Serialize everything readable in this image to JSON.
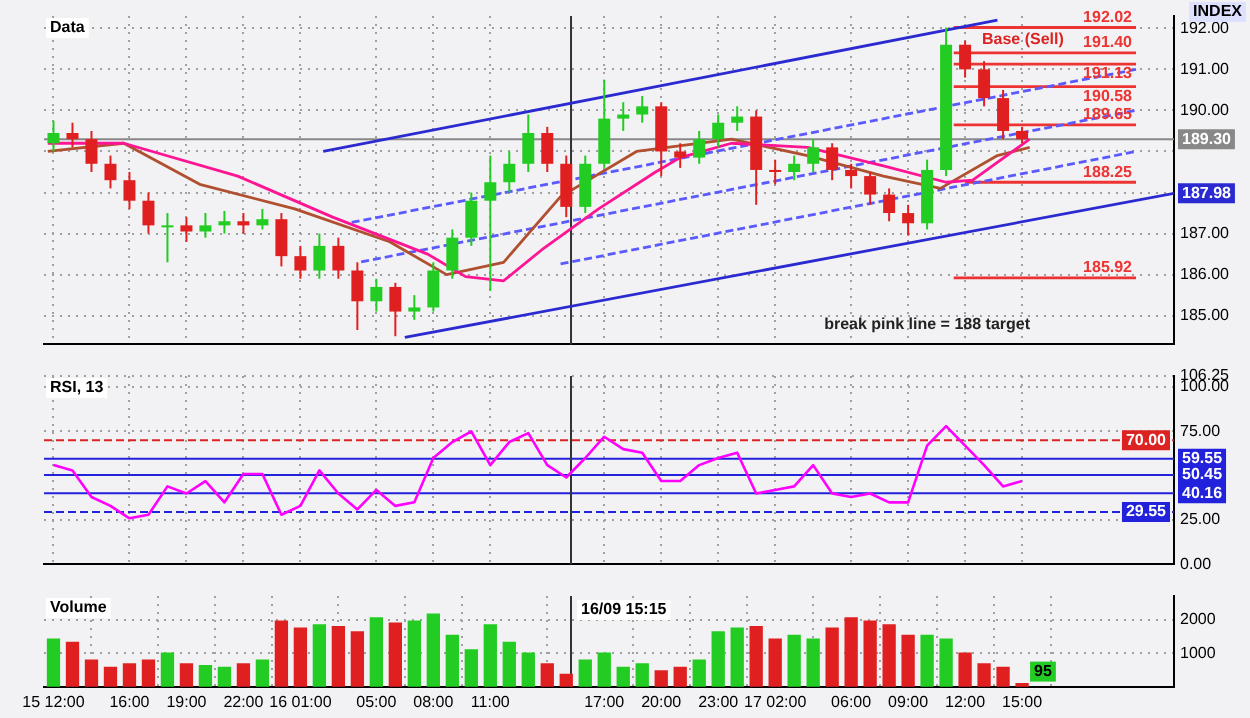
{
  "chart_data": [
    {
      "type": "candlestick",
      "title": "Data",
      "tick_labels": "y",
      "grid": true,
      "x": [
        "--09-15T12:00",
        "--09-15T13:00",
        "--09-15T14:00",
        "--09-15T15:00",
        "--09-15T16:00",
        "--09-15T17:00",
        "--09-15T18:00",
        "--09-15T19:00",
        "--09-15T20:00",
        "--09-15T21:00",
        "--09-15T22:00",
        "--09-15T23:00",
        "--09-16T00:00",
        "--09-16T01:00",
        "--09-16T02:00",
        "--09-16T03:00",
        "--09-16T04:00",
        "--09-16T05:00",
        "--09-16T06:00",
        "--09-16T07:00",
        "--09-16T08:00",
        "--09-16T09:00",
        "--09-16T10:00",
        "--09-16T11:00",
        "--09-16T12:00",
        "--09-16T13:00",
        "--09-16T14:00",
        "--09-16T15:00",
        "--09-16T16:00",
        "--09-16T17:00",
        "--09-16T18:00",
        "--09-16T19:00",
        "--09-16T20:00",
        "--09-16T21:00",
        "--09-16T22:00",
        "--09-16T23:00",
        "--09-17T00:00",
        "--09-17T01:00",
        "--09-17T02:00",
        "--09-17T03:00",
        "--09-17T04:00",
        "--09-17T05:00",
        "--09-17T06:00",
        "--09-17T07:00",
        "--09-17T08:00",
        "--09-17T09:00",
        "--09-17T10:00",
        "--09-17T11:00",
        "--09-17T12:00",
        "--09-17T13:00",
        "--09-17T14:00",
        "--09-17T15:00"
      ],
      "ohlc": [
        [
          189.2,
          189.75,
          189.0,
          189.45
        ],
        [
          189.45,
          189.7,
          189.1,
          189.3
        ],
        [
          189.3,
          189.5,
          188.5,
          188.7
        ],
        [
          188.7,
          188.9,
          188.1,
          188.3
        ],
        [
          188.3,
          188.5,
          187.6,
          187.8
        ],
        [
          187.8,
          188.0,
          187.0,
          187.2
        ],
        [
          187.2,
          187.5,
          186.3,
          187.2
        ],
        [
          187.2,
          187.4,
          186.8,
          187.05
        ],
        [
          187.05,
          187.5,
          186.9,
          187.2
        ],
        [
          187.2,
          187.55,
          187.0,
          187.3
        ],
        [
          187.3,
          187.5,
          187.0,
          187.2
        ],
        [
          187.2,
          187.6,
          187.1,
          187.35
        ],
        [
          187.35,
          187.5,
          186.2,
          186.45
        ],
        [
          186.45,
          186.7,
          185.9,
          186.1
        ],
        [
          186.1,
          187.0,
          185.9,
          186.7
        ],
        [
          186.7,
          186.9,
          185.9,
          186.1
        ],
        [
          186.1,
          186.3,
          184.65,
          185.35
        ],
        [
          185.35,
          185.9,
          185.1,
          185.7
        ],
        [
          185.7,
          185.8,
          184.5,
          185.1
        ],
        [
          185.1,
          185.5,
          184.9,
          185.2
        ],
        [
          185.2,
          186.3,
          185.1,
          186.1
        ],
        [
          186.1,
          187.1,
          185.9,
          186.9
        ],
        [
          186.9,
          188.0,
          186.7,
          187.8
        ],
        [
          187.8,
          188.9,
          185.6,
          188.25
        ],
        [
          188.25,
          189.0,
          188.0,
          188.7
        ],
        [
          188.7,
          189.9,
          188.5,
          189.45
        ],
        [
          189.45,
          189.6,
          188.5,
          188.7
        ],
        [
          188.7,
          188.9,
          187.4,
          187.65
        ],
        [
          187.65,
          188.9,
          187.5,
          188.7
        ],
        [
          188.7,
          190.75,
          188.6,
          189.8
        ],
        [
          189.8,
          190.2,
          189.5,
          189.9
        ],
        [
          189.9,
          190.35,
          189.7,
          190.1
        ],
        [
          190.1,
          190.2,
          188.4,
          189.0
        ],
        [
          189.0,
          189.2,
          188.6,
          188.85
        ],
        [
          188.85,
          189.5,
          188.7,
          189.3
        ],
        [
          189.3,
          189.9,
          189.1,
          189.7
        ],
        [
          189.7,
          190.1,
          189.5,
          189.85
        ],
        [
          189.85,
          190.0,
          187.7,
          188.55
        ],
        [
          188.55,
          188.8,
          188.2,
          188.5
        ],
        [
          188.5,
          188.9,
          188.3,
          188.7
        ],
        [
          188.7,
          189.3,
          188.5,
          189.1
        ],
        [
          189.1,
          189.2,
          188.3,
          188.55
        ],
        [
          188.55,
          188.7,
          188.1,
          188.4
        ],
        [
          188.4,
          188.5,
          187.7,
          187.95
        ],
        [
          187.95,
          188.1,
          187.3,
          187.5
        ],
        [
          187.5,
          187.7,
          186.95,
          187.25
        ],
        [
          187.25,
          188.8,
          187.1,
          188.55
        ],
        [
          188.55,
          192.02,
          188.4,
          191.6
        ],
        [
          191.6,
          191.7,
          190.8,
          191.0
        ],
        [
          191.0,
          191.2,
          190.1,
          190.3
        ],
        [
          190.3,
          190.5,
          189.3,
          189.5
        ],
        [
          189.5,
          189.6,
          189.2,
          189.3
        ]
      ],
      "colors": [
        "#22cc22",
        "#e02020",
        "#e02020",
        "#e02020",
        "#e02020",
        "#e02020",
        "#22cc22",
        "#e02020",
        "#22cc22",
        "#22cc22",
        "#e02020",
        "#22cc22",
        "#e02020",
        "#e02020",
        "#22cc22",
        "#e02020",
        "#e02020",
        "#22cc22",
        "#e02020",
        "#22cc22",
        "#22cc22",
        "#22cc22",
        "#22cc22",
        "#22cc22",
        "#22cc22",
        "#22cc22",
        "#e02020",
        "#e02020",
        "#22cc22",
        "#22cc22",
        "#22cc22",
        "#22cc22",
        "#e02020",
        "#e02020",
        "#22cc22",
        "#22cc22",
        "#22cc22",
        "#e02020",
        "#e02020",
        "#22cc22",
        "#22cc22",
        "#e02020",
        "#e02020",
        "#e02020",
        "#e02020",
        "#e02020",
        "#22cc22",
        "#22cc22",
        "#e02020",
        "#e02020",
        "#e02020",
        "#e02020"
      ],
      "series": [
        {
          "type": "line",
          "color": "#ff1493",
          "x": [
            "--09-15T11:42",
            "--09-15T15:42",
            "--09-15T21:42",
            "--09-16T02:42",
            "--09-16T07:42",
            "--09-16T09:42",
            "--09-16T11:42",
            "--09-16T13:42",
            "--09-16T16:42",
            "--09-16T19:42",
            "--09-16T21:00",
            "--09-16T23:42",
            "--09-17T03:42",
            "--09-17T07:42",
            "--09-17T11:00",
            "--09-17T12:24",
            "--09-17T15:24"
          ],
          "values": [
            189.2,
            189.2,
            188.4,
            187.4,
            186.5,
            185.95,
            185.85,
            186.6,
            187.6,
            188.5,
            188.85,
            189.2,
            189.1,
            188.65,
            188.25,
            188.3,
            189.3
          ]
        },
        {
          "type": "line",
          "color": "#b05030",
          "x": [
            "--09-15T11:42",
            "--09-15T15:42",
            "--09-15T19:42",
            "--09-16T00:42",
            "--09-16T05:42",
            "--09-16T08:42",
            "--09-16T11:42",
            "--09-16T14:42",
            "--09-16T18:42",
            "--09-16T23:42",
            "--09-17T03:42",
            "--09-17T07:42",
            "--09-17T10:42",
            "--09-17T13:42",
            "--09-17T15:24"
          ],
          "values": [
            189.0,
            189.2,
            188.2,
            187.6,
            186.8,
            186.0,
            186.3,
            187.9,
            189.0,
            189.3,
            188.9,
            188.4,
            188.1,
            188.9,
            189.1
          ]
        },
        {
          "type": "line",
          "color": "#2a2ad0",
          "x": [
            "--09-16T02:12",
            "--09-17T13:42"
          ],
          "values": [
            189.0,
            192.2
          ]
        },
        {
          "type": "line",
          "color": "#2a2ad0",
          "x": [
            "--09-16T06:30",
            "--09-17T23:00"
          ],
          "values": [
            184.47,
            187.98
          ],
          "value_labels": [
            null,
            "187.98"
          ]
        },
        {
          "type": "line",
          "color": "#5a5aff",
          "line_style": "dashed",
          "x": [
            "--09-16T03:42",
            "--09-17T21:00"
          ],
          "values": [
            187.27,
            191.0
          ]
        },
        {
          "type": "line",
          "color": "#5a5aff",
          "line_style": "dashed",
          "x": [
            "--09-16T04:12",
            "--09-17T21:00"
          ],
          "values": [
            186.31,
            190.0
          ]
        },
        {
          "type": "line",
          "color": "#5a5aff",
          "line_style": "dashed",
          "x": [
            "--09-16T14:42",
            "--09-17T21:00"
          ],
          "values": [
            186.26,
            189.0
          ]
        },
        {
          "type": "line",
          "name": "192.02",
          "color": "#ee3333",
          "x": [
            "--09-17T11:24",
            "--09-17T21:00"
          ],
          "values": [
            192.02,
            192.02
          ]
        },
        {
          "type": "line",
          "name": "191.40",
          "color": "#ee3333",
          "x": [
            "--09-17T11:24",
            "--09-17T21:00"
          ],
          "values": [
            191.4,
            191.4
          ]
        },
        {
          "type": "line",
          "name": "191.13",
          "color": "#ee3333",
          "x": [
            "--09-17T11:24",
            "--09-17T21:00"
          ],
          "values": [
            191.13,
            191.13
          ]
        },
        {
          "type": "line",
          "name": "190.58",
          "color": "#ee3333",
          "x": [
            "--09-17T11:24",
            "--09-17T21:00"
          ],
          "values": [
            190.58,
            190.58
          ]
        },
        {
          "type": "line",
          "name": "189.65",
          "color": "#ee3333",
          "x": [
            "--09-17T11:24",
            "--09-17T21:00"
          ],
          "values": [
            189.65,
            189.65
          ]
        },
        {
          "type": "line",
          "name": "188.25",
          "color": "#ee3333",
          "x": [
            "--09-17T12:00",
            "--09-17T21:00"
          ],
          "values": [
            188.25,
            188.25
          ]
        },
        {
          "type": "line",
          "name": "185.92",
          "color": "#ee3333",
          "x": [
            "--09-17T11:24",
            "--09-17T21:00"
          ],
          "values": [
            185.92,
            185.92
          ]
        }
      ],
      "xlim": [
        "--09-15T11:30",
        "--09-17T23:00"
      ],
      "xticks": [
        {
          "value": "--09-15T12:00",
          "label": "15 12:00"
        },
        {
          "value": "--09-15T16:00",
          "label": "16:00"
        },
        {
          "value": "--09-15T19:00",
          "label": "19:00"
        },
        {
          "value": "--09-15T22:00",
          "label": "22:00"
        },
        {
          "value": "--09-16T01:00",
          "label": "16 01:00"
        },
        {
          "value": "--09-16T05:00",
          "label": "05:00"
        },
        {
          "value": "--09-16T08:00",
          "label": "08:00"
        },
        {
          "value": "--09-16T11:00",
          "label": "11:00"
        },
        {
          "value": "--09-16T17:00",
          "label": "17:00"
        },
        {
          "value": "--09-16T20:00",
          "label": "20:00"
        },
        {
          "value": "--09-16T23:00",
          "label": "23:00"
        },
        {
          "value": "--09-17T02:00",
          "label": "17 02:00"
        },
        {
          "value": "--09-17T06:00",
          "label": "06:00"
        },
        {
          "value": "--09-17T09:00",
          "label": "09:00"
        },
        {
          "value": "--09-17T12:00",
          "label": "12:00"
        },
        {
          "value": "--09-17T15:00",
          "label": "15:00"
        }
      ],
      "ylim": [
        184.3,
        192.3
      ],
      "yticks": [
        {
          "value": 185,
          "label": "185.00"
        },
        {
          "value": 186,
          "label": "186.00"
        },
        {
          "value": 187,
          "label": "187.00"
        },
        {
          "value": 188,
          "label": null
        },
        {
          "value": 189,
          "label": null
        },
        {
          "value": 190,
          "label": "190.00"
        },
        {
          "value": 191,
          "label": "191.00"
        },
        {
          "value": 192,
          "label": "192.00"
        }
      ],
      "ref_lines": [
        {
          "axis": "y",
          "value": 189.3,
          "label": "189.30",
          "color": "#888888"
        },
        {
          "axis": "x",
          "value": "--09-16T15:15",
          "color": "#333333"
        }
      ],
      "annotations": [
        "INDEX",
        "Base (Sell)",
        "break pink line = 188 target"
      ]
    },
    {
      "type": "line",
      "title": "RSI, 13",
      "tick_labels": "y",
      "grid": true,
      "color": "#ff00ff",
      "x": [
        "--09-15T12:00",
        "--09-15T13:00",
        "--09-15T14:00",
        "--09-15T15:00",
        "--09-15T16:00",
        "--09-15T17:00",
        "--09-15T18:00",
        "--09-15T19:00",
        "--09-15T20:00",
        "--09-15T21:00",
        "--09-15T22:00",
        "--09-15T23:00",
        "--09-16T00:00",
        "--09-16T01:00",
        "--09-16T02:00",
        "--09-16T03:00",
        "--09-16T04:00",
        "--09-16T05:00",
        "--09-16T06:00",
        "--09-16T07:00",
        "--09-16T08:00",
        "--09-16T09:00",
        "--09-16T10:00",
        "--09-16T11:00",
        "--09-16T12:00",
        "--09-16T13:00",
        "--09-16T14:00",
        "--09-16T15:00",
        "--09-16T16:00",
        "--09-16T17:00",
        "--09-16T18:00",
        "--09-16T19:00",
        "--09-16T20:00",
        "--09-16T21:00",
        "--09-16T22:00",
        "--09-16T23:00",
        "--09-17T00:00",
        "--09-17T01:00",
        "--09-17T02:00",
        "--09-17T03:00",
        "--09-17T04:00",
        "--09-17T05:00",
        "--09-17T06:00",
        "--09-17T07:00",
        "--09-17T08:00",
        "--09-17T09:00",
        "--09-17T10:00",
        "--09-17T11:00",
        "--09-17T12:00",
        "--09-17T13:00",
        "--09-17T14:00",
        "--09-17T15:00"
      ],
      "values": [
        56,
        53,
        38,
        33,
        26,
        28,
        44,
        40,
        47,
        35,
        51,
        51,
        28,
        33,
        53,
        40,
        31,
        42,
        33,
        35,
        60,
        69,
        75,
        56,
        69,
        74,
        56,
        49,
        60,
        72,
        65,
        63,
        47,
        47,
        56,
        60,
        63,
        40,
        42,
        44,
        56,
        40,
        38,
        40,
        35,
        35,
        67,
        78,
        67,
        56,
        44,
        47
      ],
      "xlim": [
        "--09-15T11:30",
        "--09-17T23:00"
      ],
      "xticks": [
        {
          "value": "--09-15T12:00",
          "label": "15 12:00"
        },
        {
          "value": "--09-15T16:00",
          "label": "16:00"
        },
        {
          "value": "--09-15T19:00",
          "label": "19:00"
        },
        {
          "value": "--09-15T22:00",
          "label": "22:00"
        },
        {
          "value": "--09-16T01:00",
          "label": "16 01:00"
        },
        {
          "value": "--09-16T05:00",
          "label": "05:00"
        },
        {
          "value": "--09-16T08:00",
          "label": "08:00"
        },
        {
          "value": "--09-16T11:00",
          "label": "11:00"
        },
        {
          "value": "--09-16T17:00",
          "label": "17:00"
        },
        {
          "value": "--09-16T20:00",
          "label": "20:00"
        },
        {
          "value": "--09-16T23:00",
          "label": "23:00"
        },
        {
          "value": "--09-17T02:00",
          "label": "17 02:00"
        },
        {
          "value": "--09-17T06:00",
          "label": "06:00"
        },
        {
          "value": "--09-17T09:00",
          "label": "09:00"
        },
        {
          "value": "--09-17T12:00",
          "label": "12:00"
        },
        {
          "value": "--09-17T15:00",
          "label": "15:00"
        }
      ],
      "ylim": [
        0,
        106.25
      ],
      "yticks": [
        {
          "value": 0,
          "label": "0.00"
        },
        {
          "value": 25,
          "label": "25.00"
        },
        {
          "value": 75,
          "label": "75.00"
        },
        {
          "value": 100,
          "label": "100.00"
        },
        {
          "value": 106.25,
          "label": "106.25"
        }
      ],
      "ref_lines": [
        {
          "axis": "y",
          "value": 70,
          "label": "70.00",
          "color": "#dd2222",
          "line_style": "dashed"
        },
        {
          "axis": "y",
          "value": 59.55,
          "label": "59.55",
          "color": "#2222dd"
        },
        {
          "axis": "y",
          "value": 50.45,
          "label": "50.45",
          "color": "#2222dd"
        },
        {
          "axis": "y",
          "value": 40.16,
          "label": "40.16",
          "color": "#2222dd"
        },
        {
          "axis": "y",
          "value": 29.55,
          "label": "29.55",
          "color": "#2222dd",
          "line_style": "dashed"
        },
        {
          "axis": "x",
          "value": "--09-16T15:15",
          "color": "#333333"
        }
      ]
    },
    {
      "type": "bar",
      "title": "Volume",
      "grid": true,
      "x": [
        "--09-15T12:00",
        "--09-15T13:00",
        "--09-15T14:00",
        "--09-15T15:00",
        "--09-15T16:00",
        "--09-15T17:00",
        "--09-15T18:00",
        "--09-15T19:00",
        "--09-15T20:00",
        "--09-15T21:00",
        "--09-15T22:00",
        "--09-15T23:00",
        "--09-16T00:00",
        "--09-16T01:00",
        "--09-16T02:00",
        "--09-16T03:00",
        "--09-16T04:00",
        "--09-16T05:00",
        "--09-16T06:00",
        "--09-16T07:00",
        "--09-16T08:00",
        "--09-16T09:00",
        "--09-16T10:00",
        "--09-16T11:00",
        "--09-16T12:00",
        "--09-16T13:00",
        "--09-16T14:00",
        "--09-16T15:00",
        "--09-16T16:00",
        "--09-16T17:00",
        "--09-16T18:00",
        "--09-16T19:00",
        "--09-16T20:00",
        "--09-16T21:00",
        "--09-16T22:00",
        "--09-16T23:00",
        "--09-17T00:00",
        "--09-17T01:00",
        "--09-17T02:00",
        "--09-17T03:00",
        "--09-17T04:00",
        "--09-17T05:00",
        "--09-17T06:00",
        "--09-17T07:00",
        "--09-17T08:00",
        "--09-17T09:00",
        "--09-17T10:00",
        "--09-17T11:00",
        "--09-17T12:00",
        "--09-17T13:00",
        "--09-17T14:00",
        "--09-17T15:00"
      ],
      "values": [
        1420,
        1320,
        790,
        580,
        680,
        790,
        1000,
        680,
        630,
        580,
        680,
        790,
        1950,
        1740,
        1840,
        1790,
        1630,
        2050,
        1890,
        1950,
        2160,
        1530,
        1100,
        1840,
        1320,
        1000,
        680,
        370,
        790,
        1000,
        580,
        680,
        470,
        580,
        790,
        1630,
        1740,
        1790,
        1420,
        1530,
        1420,
        1740,
        2050,
        1950,
        1840,
        1530,
        1530,
        1420,
        1000,
        680,
        580,
        95
      ],
      "value_labels": [
        null,
        null,
        null,
        null,
        null,
        null,
        null,
        null,
        null,
        null,
        null,
        null,
        null,
        null,
        null,
        null,
        null,
        null,
        null,
        null,
        null,
        null,
        null,
        null,
        null,
        null,
        null,
        null,
        null,
        null,
        null,
        null,
        null,
        null,
        null,
        null,
        null,
        null,
        null,
        null,
        null,
        null,
        null,
        null,
        null,
        null,
        null,
        null,
        null,
        null,
        null,
        "95"
      ],
      "colors": [
        "#22cc22",
        "#e02020",
        "#e02020",
        "#e02020",
        "#e02020",
        "#e02020",
        "#22cc22",
        "#e02020",
        "#22cc22",
        "#22cc22",
        "#e02020",
        "#22cc22",
        "#e02020",
        "#e02020",
        "#22cc22",
        "#e02020",
        "#e02020",
        "#22cc22",
        "#e02020",
        "#22cc22",
        "#22cc22",
        "#22cc22",
        "#22cc22",
        "#22cc22",
        "#22cc22",
        "#22cc22",
        "#e02020",
        "#e02020",
        "#22cc22",
        "#22cc22",
        "#22cc22",
        "#22cc22",
        "#e02020",
        "#e02020",
        "#22cc22",
        "#22cc22",
        "#22cc22",
        "#e02020",
        "#e02020",
        "#22cc22",
        "#22cc22",
        "#e02020",
        "#e02020",
        "#e02020",
        "#e02020",
        "#e02020",
        "#22cc22",
        "#22cc22",
        "#e02020",
        "#e02020",
        "#e02020",
        "#e02020"
      ],
      "xlim": [
        "--09-15T11:30",
        "--09-17T23:00"
      ],
      "xticks": [
        {
          "value": "--09-15T12:00",
          "label": "15 12:00"
        },
        {
          "value": "--09-15T16:00",
          "label": "16:00"
        },
        {
          "value": "--09-15T19:00",
          "label": "19:00"
        },
        {
          "value": "--09-15T22:00",
          "label": "22:00"
        },
        {
          "value": "--09-16T01:00",
          "label": "16 01:00"
        },
        {
          "value": "--09-16T05:00",
          "label": "05:00"
        },
        {
          "value": "--09-16T08:00",
          "label": "08:00"
        },
        {
          "value": "--09-16T11:00",
          "label": "11:00"
        },
        {
          "value": "--09-16T17:00",
          "label": "17:00"
        },
        {
          "value": "--09-16T20:00",
          "label": "20:00"
        },
        {
          "value": "--09-16T23:00",
          "label": "23:00"
        },
        {
          "value": "--09-17T02:00",
          "label": "17 02:00"
        },
        {
          "value": "--09-17T06:00",
          "label": "06:00"
        },
        {
          "value": "--09-17T09:00",
          "label": "09:00"
        },
        {
          "value": "--09-17T12:00",
          "label": "12:00"
        },
        {
          "value": "--09-17T15:00",
          "label": "15:00"
        }
      ],
      "ylim": [
        0,
        2700
      ],
      "yticks": [
        1000,
        2000
      ],
      "ref_lines": [
        {
          "axis": "x",
          "value": "--09-16T15:15",
          "label": "16/09 15:15",
          "color": "#333333"
        }
      ]
    }
  ]
}
